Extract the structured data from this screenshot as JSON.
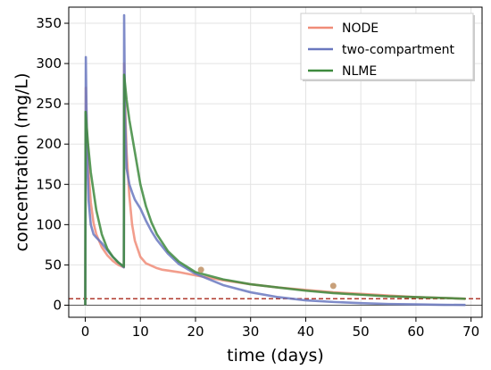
{
  "chart_data": {
    "type": "line",
    "xlabel": "time (days)",
    "ylabel": "concentration (mg/L)",
    "xlim": [
      -3,
      72
    ],
    "ylim": [
      -15,
      370
    ],
    "xticks": [
      0,
      10,
      20,
      30,
      40,
      50,
      60,
      70
    ],
    "yticks": [
      0,
      50,
      100,
      150,
      200,
      250,
      300,
      350
    ],
    "grid": true,
    "legend_position": "top-right",
    "series": [
      {
        "name": "NODE",
        "color": "#f08c78",
        "x": [
          0,
          0.1,
          0.3,
          0.6,
          1.0,
          1.5,
          2,
          3,
          4,
          5,
          6,
          7,
          7.05,
          7.2,
          7.5,
          8,
          8.5,
          9,
          10,
          11,
          12,
          13,
          14,
          15,
          17,
          20,
          25,
          30,
          35,
          40,
          45,
          50,
          55,
          60,
          65,
          69
        ],
        "y": [
          0,
          270,
          215,
          165,
          128,
          102,
          88,
          72,
          62,
          55,
          50,
          47,
          300,
          255,
          190,
          135,
          100,
          80,
          60,
          52,
          49,
          46,
          44,
          43,
          41,
          37,
          31,
          26,
          22,
          19,
          16,
          14,
          12,
          10,
          9,
          8
        ]
      },
      {
        "name": "two-compartment",
        "color": "#6a78bf",
        "x": [
          0,
          0.1,
          0.3,
          0.6,
          1.0,
          1.5,
          2,
          3,
          4,
          5,
          6,
          7,
          7.05,
          7.2,
          7.5,
          8,
          8.5,
          9,
          10,
          11,
          12,
          13,
          15,
          17,
          20,
          25,
          30,
          35,
          40,
          45,
          50,
          55,
          60,
          65,
          69
        ],
        "y": [
          0,
          308,
          200,
          130,
          100,
          88,
          84,
          77,
          68,
          60,
          53,
          47,
          360,
          240,
          170,
          150,
          140,
          131,
          120,
          105,
          92,
          81,
          64,
          51,
          39,
          25,
          16,
          10,
          6,
          4,
          2.5,
          1.5,
          1,
          0.5,
          0.3
        ]
      },
      {
        "name": "NLME",
        "color": "#3d8a3d",
        "x": [
          0,
          0.05,
          0.5,
          1,
          2,
          3,
          4,
          5,
          6,
          7,
          7.05,
          7.5,
          8,
          9,
          10,
          11,
          12,
          13,
          15,
          17,
          20,
          25,
          30,
          35,
          40,
          45,
          50,
          55,
          60,
          65,
          69
        ],
        "y": [
          0,
          240,
          200,
          165,
          118,
          88,
          70,
          60,
          53,
          48,
          286,
          255,
          230,
          190,
          150,
          123,
          103,
          88,
          67,
          54,
          41,
          32,
          26,
          22,
          18,
          15,
          13,
          11,
          10,
          9,
          8
        ]
      }
    ],
    "observations": {
      "color": "#c8a07a",
      "x": [
        21,
        45
      ],
      "y": [
        44,
        24
      ]
    },
    "reference_line": {
      "y": 8,
      "color": "#b03a2e",
      "style": "dashed"
    },
    "zero_line": {
      "y": 0,
      "color": "#555555"
    }
  }
}
